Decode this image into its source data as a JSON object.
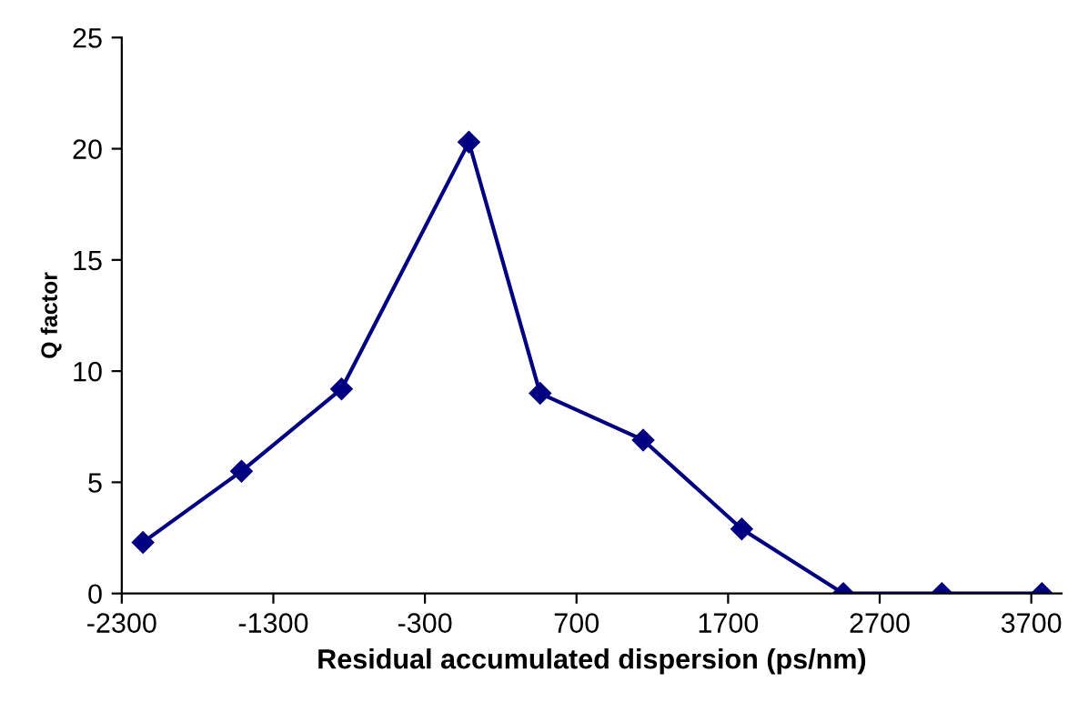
{
  "chart_data": {
    "type": "line",
    "xlabel": "Residual accumulated dispersion (ps/nm)",
    "ylabel": "Q factor",
    "x": [
      -2160,
      -1510,
      -850,
      -10,
      460,
      1140,
      1790,
      2460,
      3110,
      3770
    ],
    "series": [
      {
        "color": "#000080",
        "values": [
          2.3,
          5.5,
          9.2,
          20.3,
          9.0,
          6.9,
          2.9,
          0,
          0,
          0
        ]
      }
    ],
    "xlim": [
      -2300,
      3900
    ],
    "xticks": [
      -2300,
      -1300,
      -300,
      700,
      1700,
      2700,
      3700
    ],
    "ylim": [
      0,
      25
    ],
    "yticks": [
      0,
      5,
      10,
      15,
      20,
      25
    ],
    "grid": false,
    "legend": false,
    "marker": "diamond",
    "line_style": "solid"
  }
}
